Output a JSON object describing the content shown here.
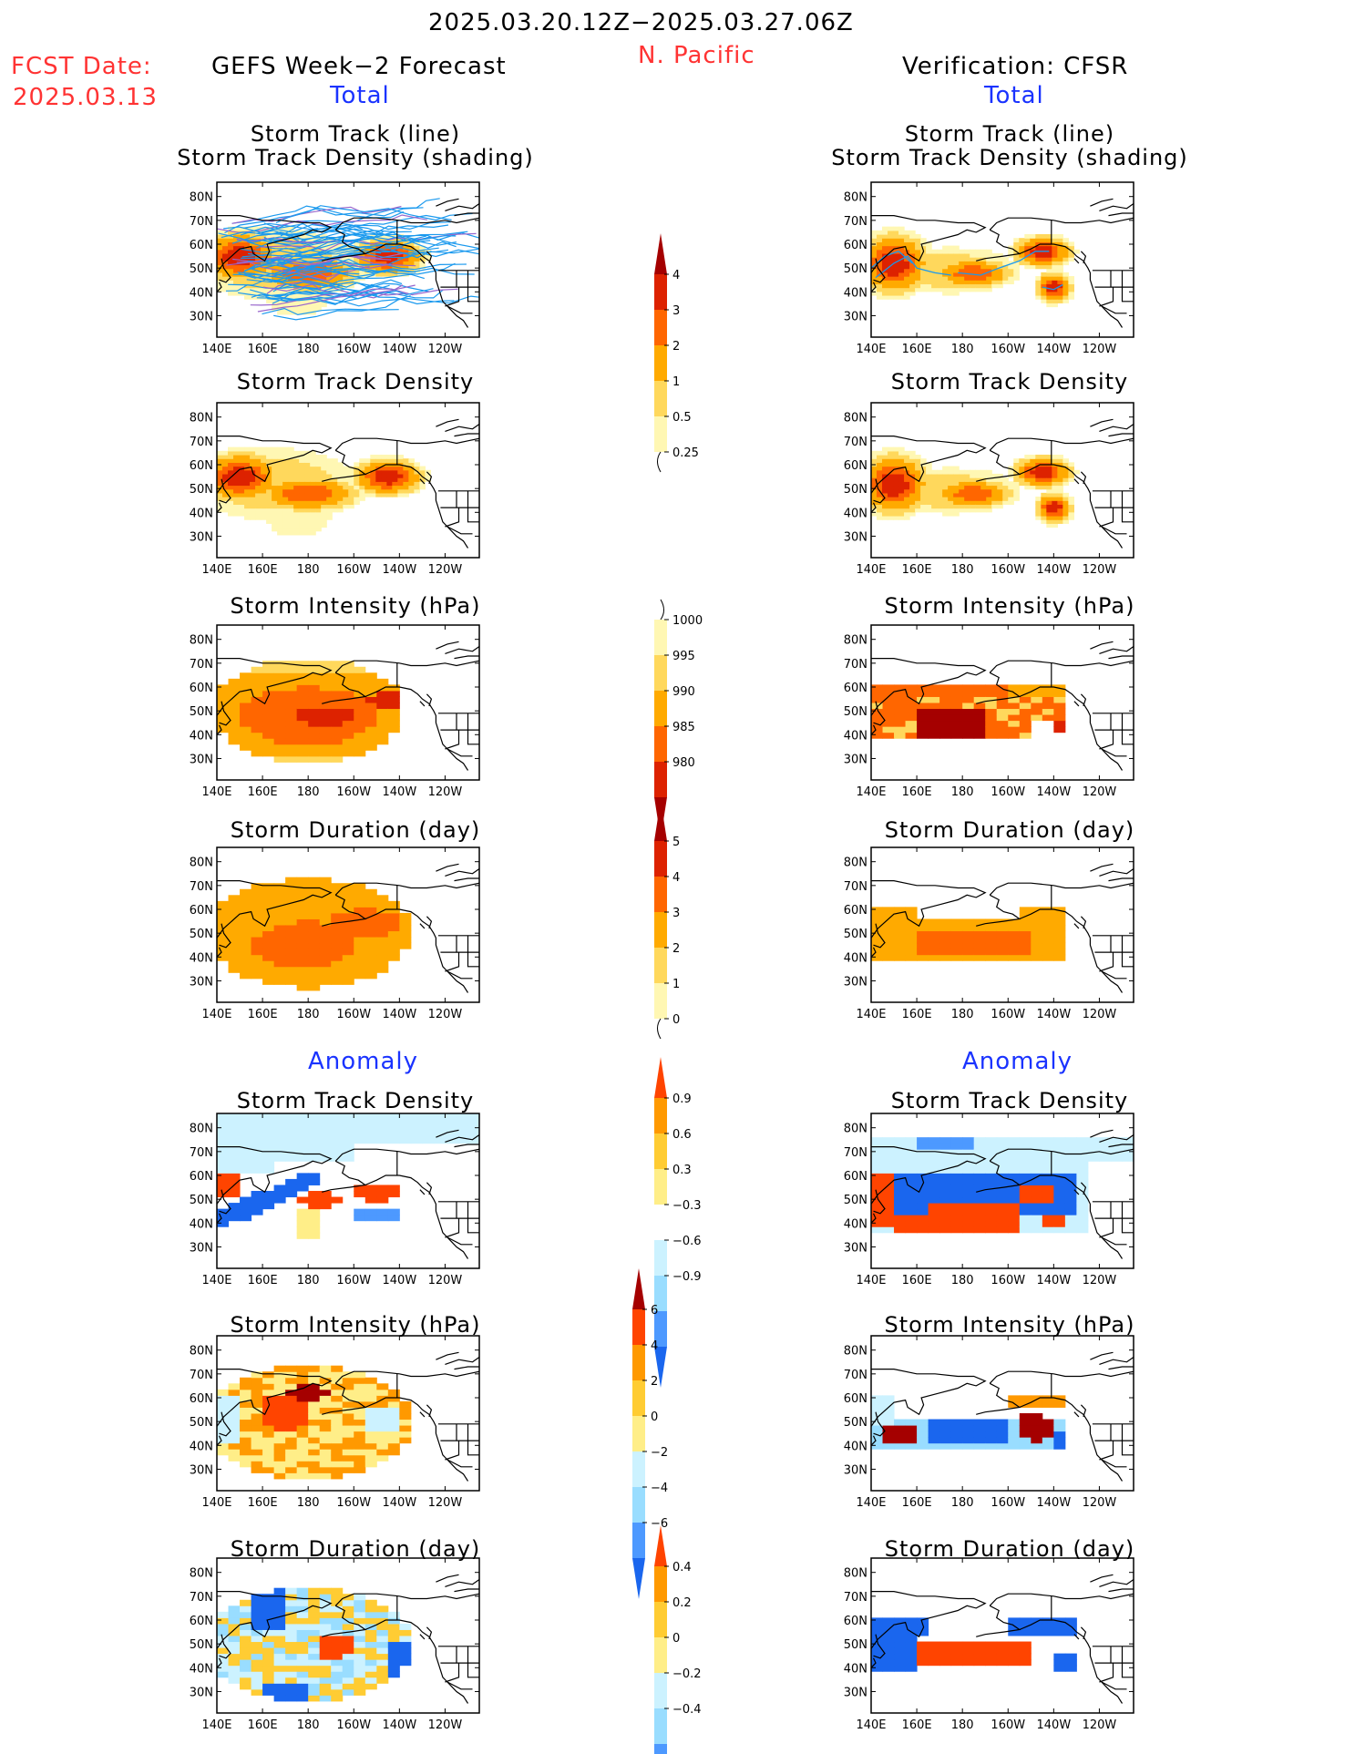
{
  "header": {
    "date_range": "2025.03.20.12Z−2025.03.27.06Z",
    "region": "N. Pacific",
    "fcst_label": "FCST Date:",
    "fcst_date": "2025.03.13",
    "left_title": "GEFS Week−2 Forecast",
    "right_title": "Verification: CFSR",
    "total_left": "Total",
    "total_right": "Total",
    "anomaly_left": "Anomaly",
    "anomaly_right": "Anomaly"
  },
  "panels": [
    {
      "key": "track_fc",
      "title1": "Storm Track (line)",
      "title2": "Storm Track Density (shading)"
    },
    {
      "key": "track_vf",
      "title1": "Storm Track (line)",
      "title2": "Storm Track Density (shading)"
    },
    {
      "key": "dens_fc",
      "title1": "Storm Track Density"
    },
    {
      "key": "dens_vf",
      "title1": "Storm Track Density"
    },
    {
      "key": "int_fc",
      "title1": "Storm Intensity (hPa)"
    },
    {
      "key": "int_vf",
      "title1": "Storm Intensity (hPa)"
    },
    {
      "key": "dur_fc",
      "title1": "Storm Duration (day)"
    },
    {
      "key": "dur_vf",
      "title1": "Storm Duration (day)"
    },
    {
      "key": "adens_fc",
      "title1": "Storm Track Density"
    },
    {
      "key": "adens_vf",
      "title1": "Storm Track Density"
    },
    {
      "key": "aint_fc",
      "title1": "Storm Intensity (hPa)"
    },
    {
      "key": "aint_vf",
      "title1": "Storm Intensity (hPa)"
    },
    {
      "key": "adur_fc",
      "title1": "Storm Duration (day)"
    },
    {
      "key": "adur_vf",
      "title1": "Storm Duration (day)"
    }
  ],
  "colors": {
    "seq": [
      "#fff7b3",
      "#ffd85c",
      "#ffaa00",
      "#ff6600",
      "#dd2200",
      "#a50000"
    ],
    "div_neg": [
      "#0044cc",
      "#1a66ee",
      "#4d99ff",
      "#99ddff",
      "#ccf2ff"
    ],
    "div_pos": [
      "#ffee88",
      "#ffcc33",
      "#ff9900",
      "#ff4400",
      "#c81000",
      "#a50000"
    ],
    "track_line": "#1a99ee",
    "track_line2": "#9966cc"
  },
  "chart_data": [
    {
      "type": "heatmap",
      "name": "storm_track_density_forecast",
      "lon_labels": [
        "140E",
        "160E",
        "180",
        "160W",
        "140W",
        "120W"
      ],
      "lat_labels": [
        "80N",
        "70N",
        "60N",
        "50N",
        "40N",
        "30N"
      ],
      "blobs": [
        {
          "lon": 150,
          "lat": 55,
          "rx": 14,
          "ry": 8,
          "v": 4
        },
        {
          "lon": 180,
          "lat": 48,
          "rx": 18,
          "ry": 6,
          "v": 3
        },
        {
          "lon": 215,
          "lat": 55,
          "rx": 12,
          "ry": 6,
          "v": 4
        },
        {
          "lon": 165,
          "lat": 52,
          "rx": 34,
          "ry": 14,
          "v": 1
        },
        {
          "lon": 175,
          "lat": 45,
          "rx": 22,
          "ry": 20,
          "v": 0.5
        },
        {
          "lon": 150,
          "lat": 70,
          "rx": 14,
          "ry": 6,
          "v": 0.25
        }
      ]
    },
    {
      "type": "heatmap",
      "name": "storm_track_density_verification",
      "lon_labels": [
        "140E",
        "160E",
        "180",
        "160W",
        "140W",
        "120W"
      ],
      "lat_labels": [
        "80N",
        "70N",
        "60N",
        "50N",
        "40N",
        "30N"
      ],
      "blobs": [
        {
          "lon": 150,
          "lat": 52,
          "rx": 12,
          "ry": 10,
          "v": 4
        },
        {
          "lon": 185,
          "lat": 48,
          "rx": 14,
          "ry": 5,
          "v": 3
        },
        {
          "lon": 215,
          "lat": 57,
          "rx": 10,
          "ry": 5,
          "v": 4
        },
        {
          "lon": 220,
          "lat": 42,
          "rx": 6,
          "ry": 5,
          "v": 4
        },
        {
          "lon": 175,
          "lat": 49,
          "rx": 28,
          "ry": 9,
          "v": 1
        }
      ]
    },
    {
      "type": "heatmap",
      "name": "storm_intensity_forecast",
      "levels": [
        980,
        985,
        990,
        995,
        1000
      ],
      "lon_labels": [
        "140E",
        "160E",
        "180",
        "160W",
        "140W",
        "120W"
      ],
      "lat_labels": [
        "80N",
        "70N",
        "60N",
        "50N",
        "40N",
        "30N"
      ]
    },
    {
      "type": "heatmap",
      "name": "storm_duration_forecast",
      "levels": [
        0,
        1,
        2,
        3,
        4,
        5
      ],
      "lon_labels": [
        "140E",
        "160E",
        "180",
        "160W",
        "140W",
        "120W"
      ],
      "lat_labels": [
        "80N",
        "70N",
        "60N",
        "50N",
        "40N",
        "30N"
      ]
    }
  ],
  "colorbars": [
    {
      "name": "density",
      "labels": [
        "4",
        "3",
        "2",
        "1",
        "0.5",
        "0.25"
      ]
    },
    {
      "name": "intensity",
      "labels": [
        "1000",
        "995",
        "990",
        "985",
        "980"
      ]
    },
    {
      "name": "duration",
      "labels": [
        "5",
        "4",
        "3",
        "2",
        "1",
        "0"
      ]
    },
    {
      "name": "anom_density",
      "labels": [
        "0.9",
        "0.6",
        "0.3",
        "−0.3",
        "−0.6",
        "−0.9"
      ]
    },
    {
      "name": "anom_intensity",
      "labels": [
        "6",
        "4",
        "2",
        "0",
        "−2",
        "−4",
        "−6"
      ]
    },
    {
      "name": "anom_duration",
      "labels": [
        "0.4",
        "0.2",
        "0",
        "−0.2",
        "−0.4"
      ]
    }
  ]
}
